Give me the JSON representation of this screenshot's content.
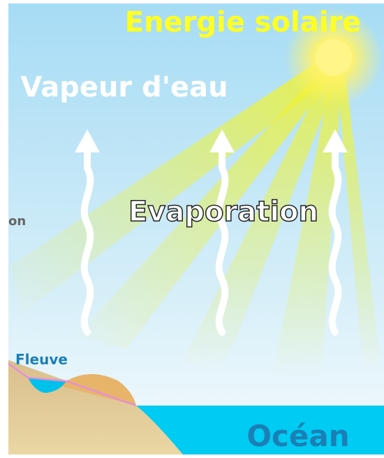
{
  "labels": {
    "energy": "Energie solaire",
    "vapor": "Vapeur d'eau",
    "partial": "on",
    "evaporation": "Evaporation",
    "river": "Fleuve",
    "ocean": "Océan"
  }
}
